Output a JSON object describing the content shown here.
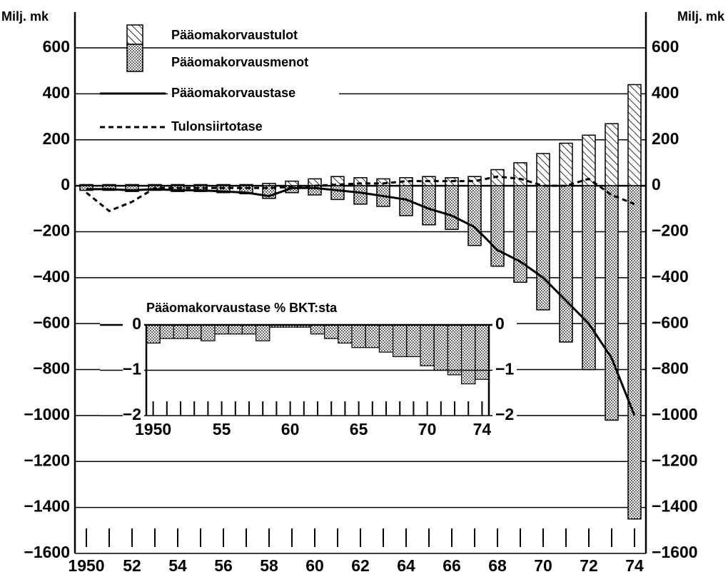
{
  "chart_data": {
    "type": "bar",
    "y_label": "Milj. mk",
    "y2_label": "Milj. mk",
    "x": [
      1950,
      1951,
      1952,
      1953,
      1954,
      1955,
      1956,
      1957,
      1958,
      1959,
      1960,
      1961,
      1962,
      1963,
      1964,
      1965,
      1966,
      1967,
      1968,
      1969,
      1970,
      1971,
      1972,
      1973,
      1974
    ],
    "series": [
      {
        "name": "Pääomakorvaustulot",
        "type": "bar",
        "pattern": "hatch",
        "color": "#000000",
        "values": [
          5,
          5,
          5,
          5,
          5,
          5,
          5,
          5,
          10,
          20,
          30,
          40,
          35,
          30,
          35,
          40,
          35,
          40,
          70,
          100,
          140,
          185,
          220,
          270,
          440
        ]
      },
      {
        "name": "Pääomakorvausmenot",
        "type": "bar",
        "pattern": "dots",
        "color": "#000000",
        "values": [
          -20,
          -20,
          -25,
          -20,
          -25,
          -25,
          -30,
          -35,
          -55,
          -30,
          -40,
          -60,
          -80,
          -90,
          -130,
          -170,
          -190,
          -260,
          -350,
          -420,
          -540,
          -680,
          -800,
          -1020,
          -1450
        ]
      },
      {
        "name": "Pääomakorvaustase",
        "type": "line",
        "style": "solid",
        "color": "#000000",
        "values": [
          -15,
          -15,
          -20,
          -15,
          -20,
          -20,
          -25,
          -30,
          -45,
          -10,
          -10,
          -20,
          -30,
          -45,
          -60,
          -100,
          -130,
          -180,
          -280,
          -330,
          -400,
          -500,
          -600,
          -750,
          -1000
        ]
      },
      {
        "name": "Tulonsiirtotase",
        "type": "line",
        "style": "dashed",
        "color": "#000000",
        "values": [
          -30,
          -110,
          -70,
          -10,
          -10,
          -10,
          -10,
          -10,
          -10,
          -5,
          0,
          5,
          10,
          10,
          20,
          20,
          20,
          20,
          40,
          30,
          0,
          0,
          30,
          -40,
          -80
        ]
      }
    ],
    "xlim": [
      1949.5,
      1974.5
    ],
    "xticks": [
      {
        "value": 1950,
        "label": "1950"
      },
      {
        "value": 1952,
        "label": "52"
      },
      {
        "value": 1954,
        "label": "54"
      },
      {
        "value": 1956,
        "label": "56"
      },
      {
        "value": 1958,
        "label": "58"
      },
      {
        "value": 1960,
        "label": "60"
      },
      {
        "value": 1962,
        "label": "62"
      },
      {
        "value": 1964,
        "label": "64"
      },
      {
        "value": 1966,
        "label": "66"
      },
      {
        "value": 1968,
        "label": "68"
      },
      {
        "value": 1970,
        "label": "70"
      },
      {
        "value": 1972,
        "label": "72"
      },
      {
        "value": 1974,
        "label": "74"
      }
    ],
    "ylim": [
      -1600,
      600
    ],
    "yticks": [
      600,
      400,
      200,
      0,
      {
        "value": -200,
        "label": "−200"
      },
      {
        "value": -400,
        "label": "−400"
      },
      {
        "value": -600,
        "label": "−600"
      },
      {
        "value": -800,
        "label": "−800"
      },
      {
        "value": -1000,
        "label": "−1000"
      },
      {
        "value": -1200,
        "label": "−1200"
      },
      {
        "value": -1400,
        "label": "−1400"
      },
      {
        "value": -1600,
        "label": "−1600"
      }
    ],
    "y2lim": [
      -1600,
      600
    ],
    "y2ticks": [
      600,
      400,
      200,
      0,
      {
        "value": -200,
        "label": "−200"
      },
      {
        "value": -400,
        "label": "−400"
      },
      {
        "value": -600,
        "label": "−600"
      },
      {
        "value": -800,
        "label": "−800"
      },
      {
        "value": -1000,
        "label": "−1000"
      },
      {
        "value": -1200,
        "label": "−1200"
      },
      {
        "value": -1400,
        "label": "−1400"
      },
      {
        "value": -1600,
        "label": "−1600"
      }
    ],
    "grid": true,
    "inset": {
      "type": "bar",
      "title": "Pääomakorvaustase % BKT:sta",
      "pattern": "dots",
      "values": [
        -0.4,
        -0.3,
        -0.3,
        -0.3,
        -0.35,
        -0.2,
        -0.2,
        -0.2,
        -0.35,
        -0.05,
        -0.05,
        -0.05,
        -0.2,
        -0.3,
        -0.4,
        -0.5,
        -0.5,
        -0.6,
        -0.7,
        -0.7,
        -0.9,
        -1.0,
        -1.1,
        -1.3,
        -1.2
      ],
      "xlim": [
        1949.5,
        1974.5
      ],
      "xticks": [
        {
          "value": 1950,
          "label": "1950"
        },
        {
          "value": 1955,
          "label": "55"
        },
        {
          "value": 1960,
          "label": "60"
        },
        {
          "value": 1965,
          "label": "65"
        },
        {
          "value": 1970,
          "label": "70"
        },
        {
          "value": 1974,
          "label": "74"
        }
      ],
      "ylim": [
        -2,
        0
      ],
      "yticks": [
        0,
        {
          "value": -1,
          "label": "−1"
        },
        {
          "value": -2,
          "label": "−2"
        }
      ],
      "grid": true
    }
  }
}
